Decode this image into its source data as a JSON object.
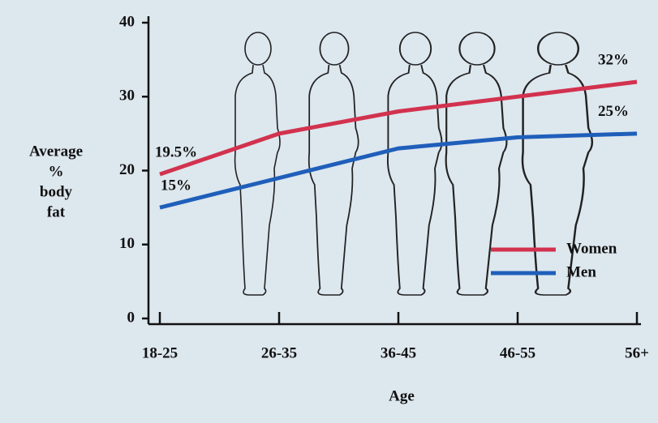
{
  "chart_data": {
    "type": "line",
    "categories": [
      "18-25",
      "26-35",
      "36-45",
      "46-55",
      "56+"
    ],
    "series": [
      {
        "name": "Women",
        "color": "#d2324e",
        "values": [
          19.5,
          25,
          28,
          30,
          32
        ],
        "value_labels": [
          "19.5%",
          null,
          null,
          null,
          "32%"
        ]
      },
      {
        "name": "Men",
        "color": "#1f5fba",
        "values": [
          15,
          19,
          23,
          24.5,
          25
        ],
        "value_labels": [
          "15%",
          null,
          null,
          null,
          "25%"
        ]
      }
    ],
    "ylabel": [
      "Average",
      "%",
      "body",
      "fat"
    ],
    "xlabel": "Age",
    "ylim": [
      0,
      40
    ],
    "yticks": [
      0,
      10,
      20,
      30,
      40
    ],
    "legend": "lower right"
  }
}
